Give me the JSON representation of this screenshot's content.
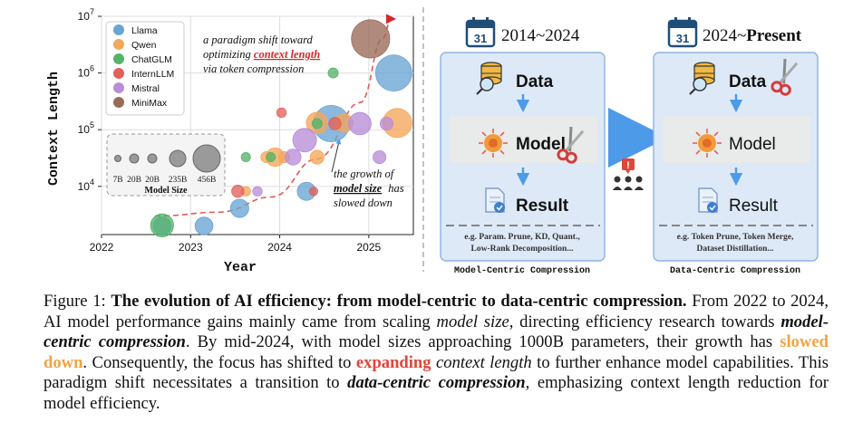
{
  "colors": {
    "llama": "#6aa4d4",
    "qwen": "#f5a75a",
    "chatglm": "#55b368",
    "internllm": "#e2615b",
    "mistral": "#b88ed8",
    "minimax": "#9a6a58",
    "red_accent": "#d62728",
    "panel_blue": "#d9e7f7",
    "panel_border": "#8fb3de",
    "arrow_blue": "#4d9ae8"
  },
  "chart_data": {
    "type": "scatter",
    "title": "",
    "xlabel": "Year",
    "ylabel": "Context Length",
    "xlim": [
      2022,
      2025.5
    ],
    "ylim_log10": [
      3.15,
      7
    ],
    "x_ticks": [
      "2022",
      "2023",
      "2024",
      "2025"
    ],
    "y_ticks": [
      "10^4",
      "10^5",
      "10^6",
      "10^7"
    ],
    "legend": [
      "Llama",
      "Qwen",
      "ChatGLM",
      "InternLLM",
      "Mistral",
      "MiniMax"
    ],
    "size_legend": {
      "labels": [
        "7B",
        "20B",
        "20B",
        "235B",
        "456B"
      ],
      "title": "Model Size"
    },
    "annotation_top": [
      "a paradigm shift toward",
      "optimizing",
      "context length",
      "via token compression"
    ],
    "annotation_bottom": [
      "the growth of",
      "model size",
      "has",
      "slowed down"
    ],
    "series": [
      {
        "name": "Llama",
        "color_key": "llama",
        "points": [
          {
            "x": 2022.68,
            "y": 2000,
            "params": 65
          },
          {
            "x": 2023.15,
            "y": 2000,
            "params": 65
          },
          {
            "x": 2023.55,
            "y": 4096,
            "params": 70
          },
          {
            "x": 2024.3,
            "y": 8192,
            "params": 70
          },
          {
            "x": 2024.58,
            "y": 128000,
            "params": 405
          },
          {
            "x": 2025.28,
            "y": 1000000,
            "params": 400
          }
        ]
      },
      {
        "name": "Qwen",
        "color_key": "qwen",
        "points": [
          {
            "x": 2023.62,
            "y": 8192,
            "params": 7
          },
          {
            "x": 2023.85,
            "y": 32768,
            "params": 14
          },
          {
            "x": 2023.95,
            "y": 32768,
            "params": 72
          },
          {
            "x": 2024.05,
            "y": 32768,
            "params": 14
          },
          {
            "x": 2024.42,
            "y": 32768,
            "params": 30
          },
          {
            "x": 2024.42,
            "y": 131072,
            "params": 110
          },
          {
            "x": 2024.72,
            "y": 131072,
            "params": 72
          },
          {
            "x": 2025.32,
            "y": 131072,
            "params": 235
          }
        ]
      },
      {
        "name": "ChatGLM",
        "color_key": "chatglm",
        "points": [
          {
            "x": 2022.68,
            "y": 2048,
            "params": 130
          },
          {
            "x": 2023.62,
            "y": 32768,
            "params": 6
          },
          {
            "x": 2023.9,
            "y": 32768,
            "params": 6
          },
          {
            "x": 2024.42,
            "y": 128000,
            "params": 9
          },
          {
            "x": 2024.6,
            "y": 1000000,
            "params": 9
          }
        ]
      },
      {
        "name": "InternLLM",
        "color_key": "internllm",
        "points": [
          {
            "x": 2023.53,
            "y": 8192,
            "params": 20
          },
          {
            "x": 2024.02,
            "y": 200000,
            "params": 7
          },
          {
            "x": 2024.62,
            "y": 128000,
            "params": 20
          },
          {
            "x": 2024.38,
            "y": 8192,
            "params": 4
          }
        ]
      },
      {
        "name": "Mistral",
        "color_key": "mistral",
        "points": [
          {
            "x": 2023.75,
            "y": 8192,
            "params": 7
          },
          {
            "x": 2024.15,
            "y": 32768,
            "params": 47
          },
          {
            "x": 2024.28,
            "y": 65536,
            "params": 141
          },
          {
            "x": 2024.9,
            "y": 128000,
            "params": 123
          },
          {
            "x": 2025.12,
            "y": 32768,
            "params": 24
          },
          {
            "x": 2025.2,
            "y": 128000,
            "params": 24
          }
        ]
      },
      {
        "name": "MiniMax",
        "color_key": "minimax",
        "points": [
          {
            "x": 2025.02,
            "y": 4000000,
            "params": 456
          }
        ]
      }
    ]
  },
  "left_panel": {
    "title": "2014~2024",
    "calendar_day": "31",
    "data_label": "Data",
    "model_label": "Model",
    "result_label": "Result",
    "examples_line1": "e.g. Param. Prune, KD, Quant.,",
    "examples_line2": "Low-Rank Decomposition...",
    "footer": "Model-Centric Compression"
  },
  "right_panel": {
    "title_prefix": "2024~",
    "title_bold": "Present",
    "calendar_day": "31",
    "data_label": "Data",
    "model_label": "Model",
    "result_label": "Result",
    "examples_line1": "e.g. Token Prune,  Token Merge,",
    "examples_line2": "Dataset Distillation...",
    "footer": "Data-Centric Compression"
  },
  "caption": {
    "label": "Figure 1:",
    "title": "The evolution of AI efficiency: from model-centric to data-centric compression.",
    "s1": "From 2022 to 2024, AI model performance gains mainly came from scaling",
    "model_size": "model size",
    "s2": ", directing efficiency research towards",
    "model_centric": "model-centric compression",
    "s3": ". By mid-2024, with model sizes approaching 1000B parameters, their growth has",
    "slowed_down": "slowed down",
    "s4": ". Consequently, the focus has shifted to",
    "expanding": "expanding",
    "context_length": "context length",
    "s5": "to further enhance model capabilities. This paradigm shift necessitates a transition to",
    "data_centric": "data-centric compression",
    "s6": ", emphasizing context length reduction for model efficiency."
  }
}
